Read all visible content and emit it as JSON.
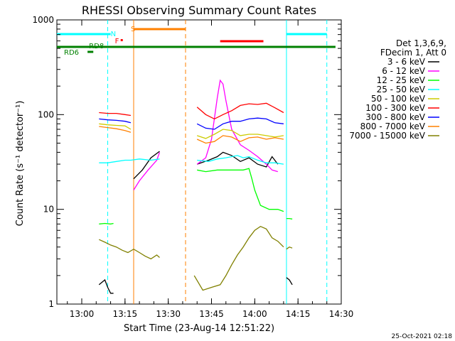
{
  "chart_data": {
    "type": "line",
    "title": "RHESSI Observing Summary Count Rates",
    "xlabel": "Start Time (23-Aug-14 12:51:22)",
    "ylabel": "Count Rate (s⁻¹ detector⁻¹)",
    "yscale": "log",
    "ylim": [
      1,
      1000
    ],
    "xlim": [
      "12:51:22",
      "14:30:00"
    ],
    "x_ticks": [
      "13:00",
      "13:15",
      "13:30",
      "13:45",
      "14:00",
      "14:15",
      "14:30"
    ],
    "y_ticks": [
      "1",
      "10",
      "100",
      "1000"
    ],
    "grid": false,
    "legend_position": "right",
    "legend_header": [
      "Det 1,3,6,9,",
      "FDecim 1, Att 0"
    ],
    "timestamp": "25-Oct-2021 02:18",
    "series": [
      {
        "name": "3 - 6 keV",
        "color": "#000000",
        "segments": [
          [
            [
              "13:06",
              1.6
            ],
            [
              "13:08",
              1.8
            ],
            [
              "13:09",
              1.5
            ],
            [
              "13:10",
              1.3
            ],
            [
              "13:11",
              1.3
            ]
          ],
          [
            [
              "13:18",
              21
            ],
            [
              "13:21",
              26
            ],
            [
              "13:24",
              35
            ],
            [
              "13:27",
              41
            ]
          ],
          [
            [
              "13:40",
              30
            ],
            [
              "13:44",
              33
            ],
            [
              "13:47",
              36
            ],
            [
              "13:49",
              40
            ],
            [
              "13:52",
              37
            ],
            [
              "13:55",
              32
            ],
            [
              "13:58",
              35
            ],
            [
              "14:01",
              30
            ],
            [
              "14:04",
              28
            ],
            [
              "14:06",
              36
            ],
            [
              "14:08",
              30
            ]
          ],
          [
            [
              "14:11",
              1.9
            ],
            [
              "14:12",
              1.8
            ],
            [
              "14:13",
              1.6
            ]
          ]
        ]
      },
      {
        "name": "6 - 12 keV",
        "color": "#ff00ff",
        "segments": [
          [
            [
              "13:18",
              16
            ],
            [
              "13:20",
              20
            ],
            [
              "13:23",
              26
            ],
            [
              "13:26",
              33
            ],
            [
              "13:27",
              40
            ]
          ],
          [
            [
              "13:40",
              30
            ],
            [
              "13:43",
              35
            ],
            [
              "13:45",
              55
            ],
            [
              "13:47",
              150
            ],
            [
              "13:48",
              230
            ],
            [
              "13:49",
              210
            ],
            [
              "13:50",
              140
            ],
            [
              "13:52",
              70
            ],
            [
              "13:55",
              48
            ],
            [
              "13:58",
              42
            ],
            [
              "14:01",
              36
            ],
            [
              "14:04",
              30
            ],
            [
              "14:06",
              26
            ],
            [
              "14:08",
              25
            ]
          ]
        ]
      },
      {
        "name": "12 - 25 keV",
        "color": "#00ff00",
        "segments": [
          [
            [
              "13:06",
              7.0
            ],
            [
              "13:08",
              7.1
            ],
            [
              "13:10",
              7.0
            ],
            [
              "13:11",
              7.1
            ]
          ],
          [
            [
              "13:40",
              26
            ],
            [
              "13:43",
              25
            ],
            [
              "13:47",
              26
            ],
            [
              "13:51",
              26
            ],
            [
              "13:54",
              26
            ],
            [
              "13:56",
              26
            ],
            [
              "13:58",
              27
            ],
            [
              "13:59",
              21
            ],
            [
              "14:00",
              16
            ],
            [
              "14:02",
              11
            ],
            [
              "14:05",
              10
            ],
            [
              "14:08",
              10
            ],
            [
              "14:10",
              9.5
            ]
          ],
          [
            [
              "14:11",
              8.0
            ],
            [
              "14:12",
              8.0
            ],
            [
              "14:13",
              7.9
            ]
          ]
        ]
      },
      {
        "name": "25 - 50 keV",
        "color": "#00ffff",
        "segments": [
          [
            [
              "13:06",
              31
            ],
            [
              "13:09",
              31
            ],
            [
              "13:12",
              32
            ],
            [
              "13:15",
              33
            ],
            [
              "13:17",
              33
            ],
            [
              "13:20",
              34
            ],
            [
              "13:24",
              33
            ],
            [
              "13:27",
              34
            ]
          ],
          [
            [
              "13:40",
              33
            ],
            [
              "13:44",
              32
            ],
            [
              "13:47",
              34
            ],
            [
              "13:50",
              35
            ],
            [
              "13:54",
              37
            ],
            [
              "13:56",
              35
            ],
            [
              "13:58",
              36
            ],
            [
              "14:01",
              33
            ],
            [
              "14:04",
              31
            ],
            [
              "14:07",
              31
            ],
            [
              "14:10",
              30
            ]
          ]
        ]
      },
      {
        "name": "50 - 100 keV",
        "color": "#cccc00",
        "segments": [
          [
            [
              "13:06",
              80
            ],
            [
              "13:09",
              78
            ],
            [
              "13:12",
              77
            ],
            [
              "13:15",
              76
            ],
            [
              "13:17",
              70
            ]
          ],
          [
            [
              "13:40",
              60
            ],
            [
              "13:43",
              56
            ],
            [
              "13:46",
              62
            ],
            [
              "13:49",
              70
            ],
            [
              "13:52",
              68
            ],
            [
              "13:55",
              60
            ],
            [
              "13:58",
              62
            ],
            [
              "14:01",
              62
            ],
            [
              "14:04",
              60
            ],
            [
              "14:07",
              58
            ],
            [
              "14:10",
              60
            ]
          ]
        ]
      },
      {
        "name": "100 - 300 keV",
        "color": "#ff0000",
        "segments": [
          [
            [
              "13:06",
              105
            ],
            [
              "13:09",
              103
            ],
            [
              "13:12",
              103
            ],
            [
              "13:15",
              100
            ],
            [
              "13:17",
              98
            ]
          ],
          [
            [
              "13:40",
              120
            ],
            [
              "13:43",
              100
            ],
            [
              "13:46",
              90
            ],
            [
              "13:49",
              100
            ],
            [
              "13:52",
              110
            ],
            [
              "13:55",
              125
            ],
            [
              "13:58",
              130
            ],
            [
              "14:01",
              128
            ],
            [
              "14:04",
              132
            ],
            [
              "14:07",
              118
            ],
            [
              "14:10",
              105
            ]
          ]
        ]
      },
      {
        "name": "300 - 800 keV",
        "color": "#0000ff",
        "segments": [
          [
            [
              "13:06",
              90
            ],
            [
              "13:09",
              88
            ],
            [
              "13:12",
              87
            ],
            [
              "13:15",
              85
            ],
            [
              "13:17",
              82
            ]
          ],
          [
            [
              "13:40",
              80
            ],
            [
              "13:43",
              72
            ],
            [
              "13:46",
              70
            ],
            [
              "13:49",
              80
            ],
            [
              "13:52",
              85
            ],
            [
              "13:55",
              85
            ],
            [
              "13:58",
              90
            ],
            [
              "14:01",
              92
            ],
            [
              "14:04",
              90
            ],
            [
              "14:07",
              82
            ],
            [
              "14:10",
              80
            ]
          ]
        ]
      },
      {
        "name": "800 - 7000 keV",
        "color": "#ff8000",
        "segments": [
          [
            [
              "13:06",
              75
            ],
            [
              "13:09",
              73
            ],
            [
              "13:12",
              71
            ],
            [
              "13:15",
              68
            ],
            [
              "13:17",
              65
            ]
          ],
          [
            [
              "13:40",
              55
            ],
            [
              "13:43",
              50
            ],
            [
              "13:46",
              52
            ],
            [
              "13:49",
              60
            ],
            [
              "13:52",
              58
            ],
            [
              "13:55",
              52
            ],
            [
              "13:58",
              57
            ],
            [
              "14:01",
              58
            ],
            [
              "14:04",
              55
            ],
            [
              "14:07",
              57
            ],
            [
              "14:10",
              55
            ]
          ]
        ]
      },
      {
        "name": "7000 - 15000 keV",
        "color": "#808000",
        "segments": [
          [
            [
              "13:06",
              4.8
            ],
            [
              "13:08",
              4.5
            ],
            [
              "13:10",
              4.2
            ],
            [
              "13:12",
              4.0
            ],
            [
              "13:14",
              3.7
            ],
            [
              "13:16",
              3.5
            ],
            [
              "13:18",
              3.8
            ],
            [
              "13:20",
              3.5
            ],
            [
              "13:22",
              3.2
            ],
            [
              "13:24",
              3.0
            ],
            [
              "13:26",
              3.3
            ],
            [
              "13:27",
              3.1
            ]
          ],
          [
            [
              "13:39",
              2.0
            ],
            [
              "13:42",
              1.4
            ],
            [
              "13:45",
              1.5
            ],
            [
              "13:48",
              1.6
            ],
            [
              "13:50",
              2.0
            ],
            [
              "13:52",
              2.6
            ],
            [
              "13:54",
              3.3
            ],
            [
              "13:56",
              4.0
            ],
            [
              "13:58",
              5.0
            ],
            [
              "14:00",
              6.0
            ],
            [
              "14:02",
              6.6
            ],
            [
              "14:04",
              6.2
            ],
            [
              "14:06",
              5.0
            ],
            [
              "14:08",
              4.6
            ],
            [
              "14:10",
              4.0
            ]
          ],
          [
            [
              "14:11",
              3.8
            ],
            [
              "14:12",
              4.0
            ],
            [
              "14:13",
              3.9
            ]
          ]
        ]
      }
    ],
    "annotations": {
      "flags": [
        {
          "label": "N",
          "color": "#00ffff"
        },
        {
          "label": "F",
          "color": "#ff0000"
        },
        {
          "label": "S",
          "color": "#ff8000"
        }
      ],
      "decimation_labels": [
        {
          "label": "RD8",
          "color": "#008000"
        },
        {
          "label": "RD6",
          "color": "#008000"
        }
      ]
    },
    "intervals": {
      "night": {
        "color": "#00ffff",
        "ranges": [
          [
            "12:51:22",
            "13:10"
          ],
          [
            "14:11",
            "14:25"
          ]
        ]
      },
      "flare": {
        "color": "#ff0000",
        "ranges": [
          [
            "13:48",
            "14:03"
          ]
        ],
        "marker": "13:13"
      },
      "saa": {
        "color": "#ff8000",
        "ranges": [
          [
            "13:18",
            "13:36"
          ]
        ]
      },
      "decimation": {
        "color": "#008000",
        "ranges": [
          [
            "12:51:22",
            "14:28"
          ]
        ]
      },
      "rd6_marker": {
        "color": "#008000",
        "ranges": [
          [
            "13:02",
            "13:04"
          ]
        ]
      }
    },
    "vertical_lines": [
      {
        "time": "13:09",
        "color": "#00ffff",
        "style": "dashed"
      },
      {
        "time": "14:11",
        "color": "#00ffff",
        "style": "solid"
      },
      {
        "time": "14:25",
        "color": "#00ffff",
        "style": "dashed"
      },
      {
        "time": "13:18",
        "color": "#ff8000",
        "style": "solid"
      },
      {
        "time": "13:36",
        "color": "#ff8000",
        "style": "dashed"
      }
    ]
  }
}
